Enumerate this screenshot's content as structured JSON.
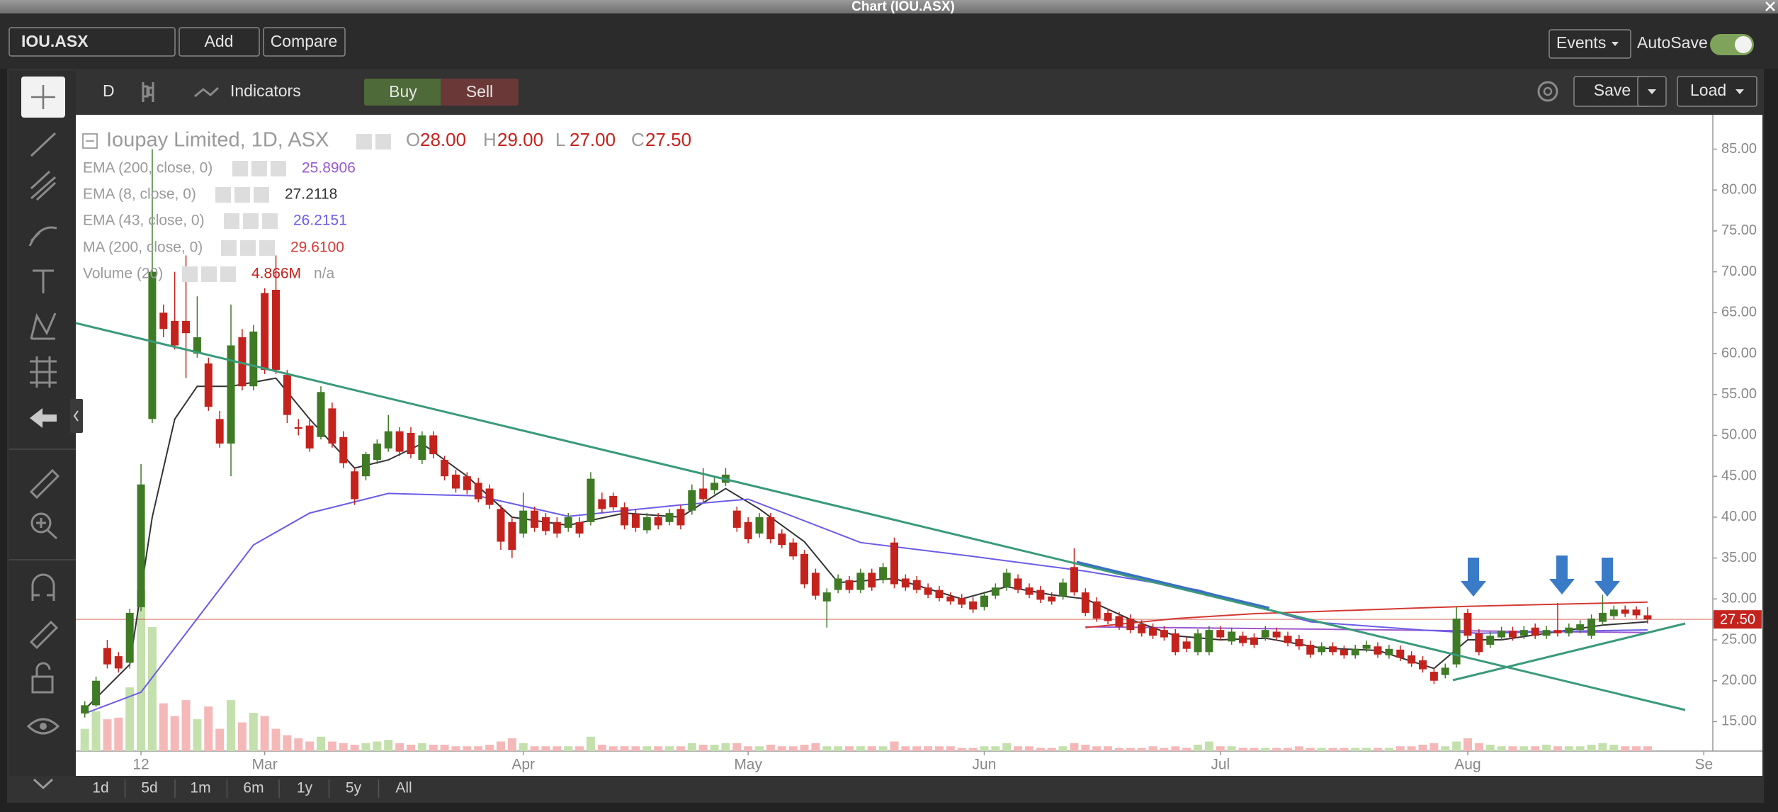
{
  "window": {
    "title": "Chart (IOU.ASX)"
  },
  "toolbar": {
    "symbol": "IOU.ASX",
    "add": "Add",
    "compare": "Compare",
    "events": "Events",
    "autosave": "AutoSave"
  },
  "chart_toolbar": {
    "interval": "D",
    "indicators": "Indicators",
    "buy": "Buy",
    "sell": "Sell",
    "save": "Save",
    "load": "Load"
  },
  "ranges": [
    "1d",
    "5d",
    "1m",
    "6m",
    "1y",
    "5y",
    "All"
  ],
  "chart_data": {
    "type": "candlestick",
    "title": "Ioupay Limited, 1D, ASX",
    "ohlc_legend": [
      {
        "key": "O",
        "value": "28.00"
      },
      {
        "key": "H",
        "value": "29.00"
      },
      {
        "key": "L",
        "value": "27.00"
      },
      {
        "key": "C",
        "value": "27.50"
      }
    ],
    "up_color": "#3f7a25",
    "down_color": "#c4231d",
    "candles": [
      [
        16,
        17.5,
        15.5,
        17
      ],
      [
        17,
        20.5,
        16.8,
        20
      ],
      [
        24,
        25,
        21.5,
        22
      ],
      [
        23,
        23.5,
        21,
        21.5
      ],
      [
        22.2,
        28.8,
        21.5,
        28.3
      ],
      [
        29,
        46.5,
        28.5,
        44
      ],
      [
        52,
        85,
        51.5,
        70
      ],
      [
        65,
        66,
        62,
        63
      ],
      [
        64,
        70,
        60.5,
        61
      ],
      [
        64,
        72,
        57,
        62.5
      ],
      [
        60,
        67,
        59.5,
        62
      ],
      [
        58.8,
        59.5,
        53,
        53.5
      ],
      [
        52,
        53,
        48.5,
        49
      ],
      [
        49,
        66,
        45,
        61
      ],
      [
        62,
        63,
        55.5,
        56
      ],
      [
        56,
        63.5,
        55.5,
        62.7
      ],
      [
        67.4,
        68,
        57.5,
        58
      ],
      [
        67.8,
        72,
        57.5,
        58
      ],
      [
        57.4,
        58,
        51.5,
        52.5
      ],
      [
        51,
        52,
        50,
        50.8
      ],
      [
        51.2,
        52,
        48,
        48.4
      ],
      [
        49.8,
        56,
        49.5,
        55.3
      ],
      [
        53.3,
        54,
        48.5,
        49
      ],
      [
        49.8,
        50.5,
        46,
        46.6
      ],
      [
        45.6,
        46,
        41.5,
        42.2
      ],
      [
        45,
        48,
        44.5,
        47.7
      ],
      [
        47,
        49.5,
        46.5,
        49
      ],
      [
        48.4,
        52.5,
        48,
        50.5
      ],
      [
        50.5,
        51,
        47.5,
        48
      ],
      [
        50.3,
        51,
        47.2,
        47.7
      ],
      [
        47,
        50.5,
        46.5,
        50
      ],
      [
        50,
        50.5,
        47.2,
        47.7
      ],
      [
        47,
        47.5,
        44.5,
        45
      ],
      [
        45.2,
        45.8,
        43,
        43.5
      ],
      [
        45,
        45.5,
        42.8,
        43.3
      ],
      [
        44.2,
        44.8,
        41.8,
        42.2
      ],
      [
        43.5,
        44,
        41,
        41.5
      ],
      [
        41,
        41.5,
        36,
        37
      ],
      [
        39.4,
        40,
        35,
        36
      ],
      [
        38,
        43,
        37.5,
        40.8
      ],
      [
        40.8,
        41.3,
        38.2,
        38.7
      ],
      [
        40,
        40.5,
        37.8,
        38.3
      ],
      [
        39.4,
        40,
        37.5,
        38
      ],
      [
        38.7,
        40.5,
        38.2,
        40
      ],
      [
        39.4,
        40,
        37.5,
        38
      ],
      [
        39.4,
        45.5,
        39,
        44.7
      ],
      [
        42.2,
        43,
        40.5,
        41
      ],
      [
        42.6,
        43,
        40.8,
        41.2
      ],
      [
        41.2,
        41.8,
        38.5,
        39
      ],
      [
        40.4,
        41,
        38.2,
        38.7
      ],
      [
        38.4,
        40.5,
        38,
        40
      ],
      [
        40,
        40.5,
        38.5,
        39
      ],
      [
        39.4,
        41,
        39,
        40.5
      ],
      [
        41,
        41.5,
        38.5,
        39
      ],
      [
        40.8,
        44,
        40.3,
        43.3
      ],
      [
        43.5,
        46,
        41.8,
        42.2
      ],
      [
        43.3,
        45,
        42.8,
        44.2
      ],
      [
        44.2,
        46,
        43.8,
        45.2
      ],
      [
        40.8,
        41.3,
        38.2,
        38.7
      ],
      [
        39.4,
        40,
        36.8,
        37.3
      ],
      [
        38,
        40.5,
        37.5,
        40
      ],
      [
        40,
        40.5,
        36.8,
        37.3
      ],
      [
        38,
        38.5,
        36.2,
        36.6
      ],
      [
        36.9,
        37.4,
        34.8,
        35.2
      ],
      [
        35.5,
        36,
        31.3,
        31.8
      ],
      [
        33.2,
        33.7,
        29.9,
        30.4
      ],
      [
        29.7,
        31.3,
        26.5,
        30.8
      ],
      [
        31.1,
        33,
        30.7,
        32.5
      ],
      [
        32.3,
        32.8,
        30.7,
        31.1
      ],
      [
        31.1,
        33.7,
        30.7,
        33.2
      ],
      [
        33.2,
        33.7,
        31,
        31.4
      ],
      [
        32.3,
        34.4,
        31.9,
        33.9
      ],
      [
        36.9,
        37.5,
        31.3,
        31.8
      ],
      [
        32.5,
        33,
        31,
        31.4
      ],
      [
        32.3,
        32.8,
        30.7,
        31.1
      ],
      [
        31.4,
        31.9,
        30.1,
        30.5
      ],
      [
        31.1,
        31.6,
        29.7,
        30.1
      ],
      [
        30.3,
        30.8,
        29.3,
        29.7
      ],
      [
        30.1,
        30.6,
        28.9,
        29.3
      ],
      [
        29.7,
        30.2,
        28.3,
        28.7
      ],
      [
        29,
        30.9,
        28.6,
        30.4
      ],
      [
        30.4,
        31.9,
        30,
        31.4
      ],
      [
        31.4,
        33.7,
        31,
        33.2
      ],
      [
        32.5,
        33,
        30.7,
        31.1
      ],
      [
        31.4,
        31.9,
        30.1,
        30.5
      ],
      [
        31.1,
        31.6,
        29.5,
        29.9
      ],
      [
        30.3,
        30.8,
        29.3,
        29.7
      ],
      [
        30.3,
        32.5,
        29.9,
        32
      ],
      [
        33.9,
        36.2,
        30.4,
        30.8
      ],
      [
        30.8,
        31.3,
        27.9,
        28.3
      ],
      [
        29.7,
        30.2,
        27.2,
        27.6
      ],
      [
        28.3,
        28.8,
        26.9,
        27.3
      ],
      [
        27.9,
        28.4,
        26.2,
        26.6
      ],
      [
        27.6,
        28.1,
        25.8,
        26.2
      ],
      [
        26.9,
        27.4,
        25.4,
        25.8
      ],
      [
        26.5,
        27,
        25.1,
        25.5
      ],
      [
        26.2,
        26.7,
        24.9,
        25.3
      ],
      [
        25.8,
        26.3,
        23.1,
        23.5
      ],
      [
        24.8,
        25.3,
        23.5,
        23.9
      ],
      [
        23.5,
        26.3,
        23.1,
        25.8
      ],
      [
        23.5,
        26.7,
        23.1,
        26.2
      ],
      [
        26.2,
        26.7,
        24.9,
        25.3
      ],
      [
        24.8,
        26.5,
        24.4,
        26
      ],
      [
        25.5,
        26,
        24.2,
        24.6
      ],
      [
        25.3,
        25.8,
        24,
        24.4
      ],
      [
        25.3,
        26.7,
        24.9,
        26.2
      ],
      [
        26,
        26.5,
        24.9,
        25.3
      ],
      [
        25.5,
        26,
        24.2,
        24.6
      ],
      [
        25.1,
        25.6,
        23.8,
        24.2
      ],
      [
        24.4,
        24.9,
        22.8,
        23.2
      ],
      [
        23.5,
        24.7,
        23.1,
        24.2
      ],
      [
        24.2,
        24.7,
        23.1,
        23.5
      ],
      [
        23.8,
        24.3,
        22.7,
        23.1
      ],
      [
        23.1,
        24.4,
        22.7,
        23.9
      ],
      [
        23.9,
        24.9,
        23.5,
        24.4
      ],
      [
        24.2,
        24.7,
        22.8,
        23.2
      ],
      [
        23.1,
        24.4,
        22.7,
        23.9
      ],
      [
        23.8,
        24.3,
        22.4,
        22.8
      ],
      [
        23.1,
        23.6,
        21.7,
        22.1
      ],
      [
        22.5,
        23,
        21,
        21.4
      ],
      [
        21.1,
        21.6,
        19.6,
        20
      ],
      [
        20.7,
        22.1,
        20.3,
        21.6
      ],
      [
        22,
        29,
        21.6,
        27.6
      ],
      [
        28.3,
        28.8,
        25.1,
        25.5
      ],
      [
        25.8,
        26.3,
        23.1,
        23.5
      ],
      [
        24.4,
        26,
        24,
        25.5
      ],
      [
        25.3,
        26.6,
        24.9,
        26.1
      ],
      [
        26.1,
        26.6,
        24.9,
        25.3
      ],
      [
        25.5,
        26.7,
        25.1,
        26.2
      ],
      [
        26.5,
        27,
        25.1,
        25.5
      ],
      [
        25.5,
        26.7,
        25.1,
        26.2
      ],
      [
        26.2,
        29.5,
        25.4,
        25.8
      ],
      [
        25.8,
        27,
        25.4,
        26.5
      ],
      [
        26.2,
        27.4,
        25.8,
        26.9
      ],
      [
        25.5,
        28.1,
        25.1,
        27.6
      ],
      [
        27.2,
        30.5,
        26.8,
        28.3
      ],
      [
        27.9,
        29.2,
        27.5,
        28.7
      ],
      [
        28.7,
        29.2,
        27.8,
        28.2
      ],
      [
        28.7,
        29.1,
        27.6,
        28
      ],
      [
        28,
        29,
        27,
        27.5
      ]
    ],
    "indicators": [
      {
        "name": "EMA (200, close, 0)",
        "value_label": "25.8906",
        "color": "#9b59d0",
        "x": [
          89,
          110,
          130,
          139
        ],
        "values": [
          26.6,
          26.3,
          26,
          25.8906
        ]
      },
      {
        "name": "EMA (8, close, 0)",
        "value_label": "27.2118",
        "color": "#333333",
        "x": [
          0,
          4,
          6,
          8,
          10,
          13,
          17,
          20,
          24,
          27,
          30,
          34,
          38,
          43,
          48,
          53,
          57,
          60,
          64,
          67,
          72,
          78,
          82,
          86,
          89,
          93,
          97,
          101,
          105,
          110,
          115,
          120,
          123,
          126,
          130,
          135,
          139
        ],
        "values": [
          16.5,
          22,
          40,
          52,
          56,
          56,
          57,
          52,
          46,
          47,
          49,
          45,
          40,
          39,
          40.5,
          40,
          43.5,
          41,
          37,
          32,
          32.5,
          30,
          31.5,
          30.5,
          30,
          27.5,
          25.5,
          25,
          25.2,
          24,
          23.7,
          21.5,
          25,
          25,
          25.8,
          26.8,
          27.2118
        ]
      },
      {
        "name": "EMA (43, close, 0)",
        "value_label": "26.2151",
        "color": "#6b5ce7",
        "x": [
          0,
          5,
          10,
          15,
          20,
          27,
          35,
          43,
          53,
          59,
          69,
          79,
          89,
          99,
          109,
          119,
          124,
          134,
          139
        ],
        "values": [
          16,
          18.6,
          27.6,
          36.6,
          40.5,
          42.9,
          42.6,
          40.1,
          41.5,
          42.2,
          36.9,
          35.2,
          33.4,
          31.1,
          27.2,
          26.2,
          25.8,
          26.1,
          26.2151
        ]
      },
      {
        "name": "MA (200, close, 0)",
        "value_label": "29.6100",
        "color": "#d43a33",
        "x": [
          89,
          97,
          104,
          123,
          139
        ],
        "values": [
          26.5,
          27.6,
          28.2,
          29.1,
          29.61
        ]
      }
    ],
    "volume": {
      "name": "Volume (20)",
      "value_label": "4.866M",
      "extra": "n/a",
      "up_color": "#c3e0ad",
      "down_color": "#f4b8b8",
      "ylim": [
        0,
        400
      ],
      "values": [
        14,
        25,
        20,
        21,
        40,
        101,
        78,
        30,
        22,
        32,
        20,
        28,
        14,
        32,
        18,
        24,
        22,
        14,
        10,
        8,
        6,
        9,
        6,
        5,
        4,
        5,
        6,
        7,
        5,
        4,
        5,
        4,
        4,
        3,
        3,
        3,
        4,
        6,
        8,
        5,
        3,
        3,
        3,
        3,
        3,
        9,
        4,
        3,
        3,
        3,
        3,
        3,
        3,
        3,
        5,
        4,
        4,
        5,
        5,
        3,
        3,
        4,
        3,
        3,
        4,
        5,
        3,
        3,
        3,
        3,
        3,
        3,
        6,
        3,
        3,
        3,
        3,
        3,
        2,
        2,
        3,
        3,
        5,
        3,
        3,
        2,
        2,
        3,
        5,
        4,
        3,
        3,
        2,
        2,
        2,
        3,
        2,
        3,
        2,
        4,
        6,
        3,
        3,
        2,
        2,
        2,
        2,
        2,
        3,
        2,
        2,
        2,
        2,
        2,
        2,
        2,
        2,
        3,
        3,
        4,
        5,
        3,
        6,
        8,
        5,
        4,
        3,
        3,
        3,
        3,
        4,
        3,
        3,
        3,
        4,
        5,
        4,
        3,
        3,
        3
      ]
    },
    "xlim": [
      -0.8,
      144.8
    ],
    "xticks": [
      {
        "value": 5,
        "label": "12"
      },
      {
        "value": 16,
        "label": "Mar"
      },
      {
        "value": 39,
        "label": "Apr"
      },
      {
        "value": 59,
        "label": "May"
      },
      {
        "value": 80,
        "label": "Jun"
      },
      {
        "value": 101,
        "label": "Jul"
      },
      {
        "value": 123,
        "label": "Aug"
      },
      {
        "value": 144,
        "label": "Se"
      }
    ],
    "ylim": [
      11.4,
      89.2
    ],
    "yticks": [
      {
        "value": 15,
        "label": "15.00"
      },
      {
        "value": 20,
        "label": "20.00"
      },
      {
        "value": 25,
        "label": "25.00"
      },
      {
        "value": 30,
        "label": "30.00"
      },
      {
        "value": 35,
        "label": "35.00"
      },
      {
        "value": 40,
        "label": "40.00"
      },
      {
        "value": 45,
        "label": "45.00"
      },
      {
        "value": 50,
        "label": "50.00"
      },
      {
        "value": 55,
        "label": "55.00"
      },
      {
        "value": 60,
        "label": "60.00"
      },
      {
        "value": 65,
        "label": "65.00"
      },
      {
        "value": 70,
        "label": "70.00"
      },
      {
        "value": 75,
        "label": "75.00"
      },
      {
        "value": 80,
        "label": "80.00"
      },
      {
        "value": 85,
        "label": "85.00"
      }
    ],
    "last_price": {
      "value": 27.5,
      "label": "27.50",
      "color": "#c4231d"
    }
  }
}
